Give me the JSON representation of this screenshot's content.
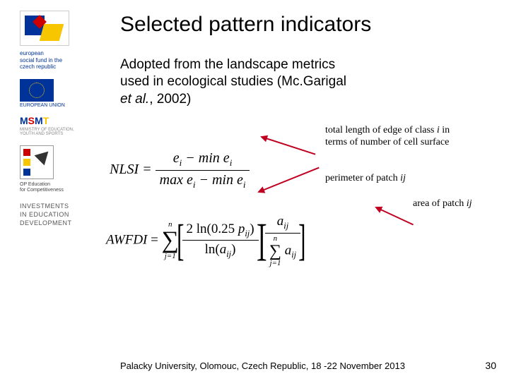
{
  "sidebar": {
    "esf_label": "european\nsocial fund in the\nczech republic",
    "eu_label": "EUROPEAN UNION",
    "msmt_parts": [
      "M",
      "S",
      "M",
      "T"
    ],
    "msmt_label": "MINISTRY OF EDUCATION,\nYOUTH AND SPORTS",
    "op_label": "OP Education\nfor Competitiveness",
    "invest_label": "INVESTMENTS\nIN EDUCATION\nDEVELOPMENT"
  },
  "title": "Selected pattern indicators",
  "body": {
    "line1": "Adopted from the landscape metrics",
    "line2": "used in ecological studies (Mc.Garigal",
    "line3_prefix": "et al.",
    "line3_suffix": ", 2002)"
  },
  "formulas": {
    "nlsi_label": "NLSI",
    "eq": " = ",
    "nlsi_num_a": "e",
    "nlsi_num_a_sub": "i",
    "nlsi_num_min": " − min ",
    "nlsi_num_b": "e",
    "nlsi_num_b_sub": "i",
    "nlsi_den_max": "max ",
    "nlsi_den_a": "e",
    "nlsi_den_a_sub": "i",
    "nlsi_den_min": " − min ",
    "nlsi_den_b": "e",
    "nlsi_den_b_sub": "i",
    "awfdi_label": "AWFDI",
    "sum_top": "n",
    "sum_bot": "j=1",
    "awfdi_num_prefix": "2 ln(0.25 ",
    "p": "p",
    "p_sub": "ij",
    "awfdi_num_suffix": ")",
    "awfdi_den_prefix": "ln(",
    "a": "a",
    "a_sub": "ij",
    "awfdi_den_suffix": ")",
    "aij": "a",
    "aij_sub": "ij"
  },
  "annotations": {
    "note1_a": "total length of edge of class ",
    "note1_i": "i",
    "note1_b": " in terms of number of cell surface",
    "note2_a": "perimeter of patch ",
    "note2_i": "ij",
    "note3_a": "area of patch ",
    "note3_i": "ij"
  },
  "footer": "Palacky University, Olomouc, Czech Republic, 18 -22 November 2013",
  "page": "30",
  "colors": {
    "arrow": "#c00020",
    "eu_blue": "#003399",
    "eu_yellow": "#f7c600",
    "red": "#c00"
  }
}
